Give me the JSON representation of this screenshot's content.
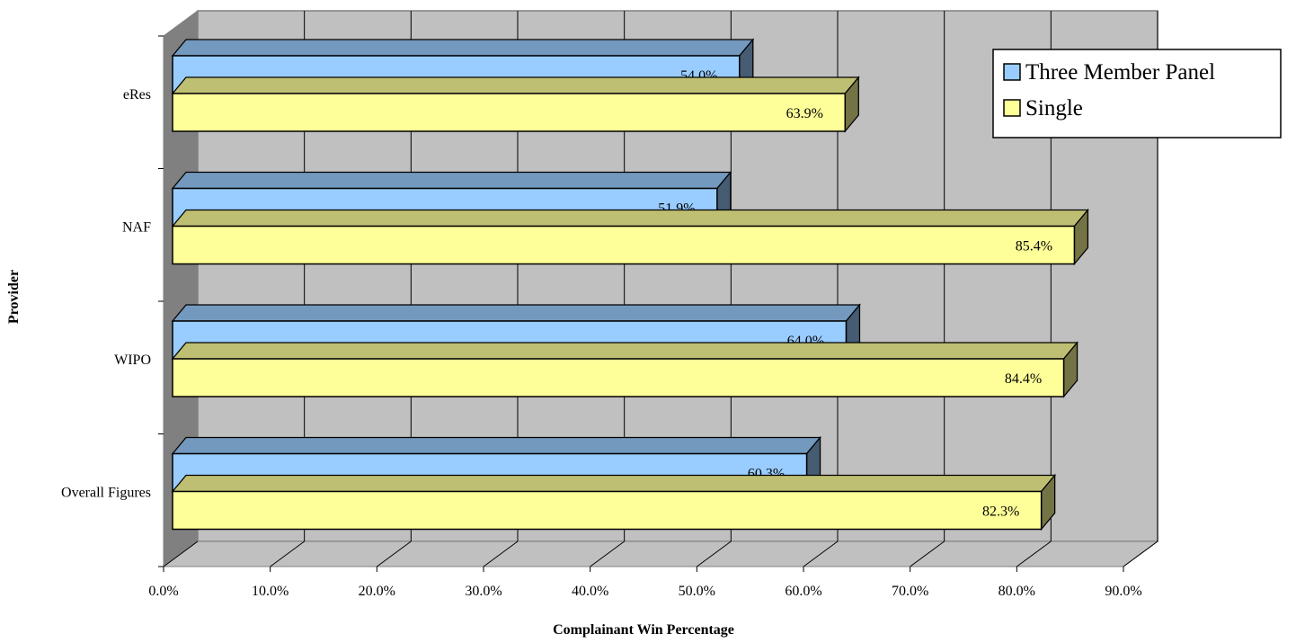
{
  "chart_data": {
    "type": "bar",
    "orientation": "horizontal",
    "style": "3d",
    "title": "",
    "xlabel": "Complainant Win Percentage",
    "ylabel": "Provider",
    "categories": [
      "eRes",
      "NAF",
      "WIPO",
      "Overall Figures"
    ],
    "series": [
      {
        "name": "Three Member Panel",
        "color": "#99ccff",
        "values": [
          54.0,
          51.9,
          64.0,
          60.3
        ],
        "labels": [
          "54.0%",
          "51.9%",
          "64.0%",
          "60.3%"
        ]
      },
      {
        "name": "Single",
        "color": "#ffff99",
        "values": [
          63.9,
          85.4,
          84.4,
          82.3
        ],
        "labels": [
          "63.9%",
          "85.4%",
          "84.4%",
          "82.3%"
        ]
      }
    ],
    "xlim": [
      0,
      90
    ],
    "x_ticks": [
      "0.0%",
      "10.0%",
      "20.0%",
      "30.0%",
      "40.0%",
      "50.0%",
      "60.0%",
      "70.0%",
      "80.0%",
      "90.0%"
    ],
    "grid": true,
    "legend_position": "top-right",
    "colors": {
      "wall": "#c0c0c0",
      "floor": "#c0c0c0",
      "side_wall": "#808080"
    }
  }
}
